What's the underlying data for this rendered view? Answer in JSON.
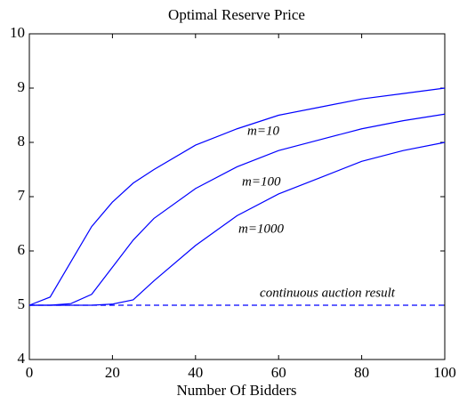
{
  "chart_data": {
    "type": "line",
    "title": "Optimal Reserve Price",
    "xlabel": "Number Of Bidders",
    "x": [
      0,
      5,
      10,
      15,
      20,
      25,
      30,
      40,
      50,
      60,
      70,
      80,
      90,
      100
    ],
    "series": [
      {
        "name": "m=10",
        "color": "#0000ff",
        "style": "solid",
        "values": [
          5.0,
          5.15,
          5.8,
          6.45,
          6.9,
          7.25,
          7.5,
          7.95,
          8.25,
          8.5,
          8.65,
          8.8,
          8.9,
          9.0
        ]
      },
      {
        "name": "m=100",
        "color": "#0000ff",
        "style": "solid",
        "values": [
          5.0,
          5.0,
          5.03,
          5.2,
          5.7,
          6.2,
          6.6,
          7.15,
          7.55,
          7.85,
          8.05,
          8.25,
          8.4,
          8.52
        ]
      },
      {
        "name": "m=1000",
        "color": "#0000ff",
        "style": "solid",
        "values": [
          5.0,
          5.0,
          5.0,
          5.0,
          5.02,
          5.1,
          5.45,
          6.1,
          6.65,
          7.05,
          7.35,
          7.65,
          7.85,
          8.0
        ]
      },
      {
        "name": "continuous auction result",
        "color": "#0000ff",
        "style": "dashed",
        "values": [
          5,
          5,
          5,
          5,
          5,
          5,
          5,
          5,
          5,
          5,
          5,
          5,
          5,
          5
        ]
      }
    ],
    "xlim": [
      0,
      100
    ],
    "xticks": [
      0,
      20,
      40,
      60,
      80,
      100
    ],
    "ylim": [
      4,
      10
    ],
    "yticks": [
      4,
      5,
      6,
      7,
      8,
      9,
      10
    ],
    "grid": false
  }
}
